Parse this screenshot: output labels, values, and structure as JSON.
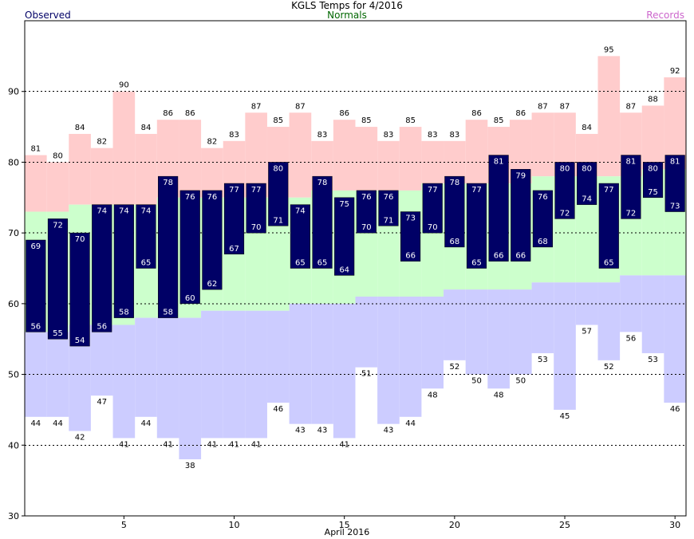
{
  "title": "KGLS Temps for 4/2016",
  "legend": {
    "observed": "Observed",
    "normals": "Normals",
    "records": "Records"
  },
  "colors": {
    "observed": "#000066",
    "normals": "#ccffcc",
    "record_high": "#ffcccc",
    "record_low": "#ccccff",
    "observed_legend": "#000066",
    "normals_legend": "#006600",
    "records_legend": "#cc66cc"
  },
  "chart_data": {
    "type": "bar",
    "title": "KGLS Temps for 4/2016",
    "xlabel": "April 2016",
    "ylabel": "",
    "xlim": [
      0.5,
      30.5
    ],
    "ylim": [
      30,
      100
    ],
    "x_ticks": [
      5,
      10,
      15,
      20,
      25,
      30
    ],
    "y_ticks": [
      30,
      40,
      50,
      60,
      70,
      80,
      90
    ],
    "grid": "horizontal dotted at 40, 50, 60, 70, 80, 90",
    "days": [
      1,
      2,
      3,
      4,
      5,
      6,
      7,
      8,
      9,
      10,
      11,
      12,
      13,
      14,
      15,
      16,
      17,
      18,
      19,
      20,
      21,
      22,
      23,
      24,
      25,
      26,
      27,
      28,
      29,
      30
    ],
    "series": [
      {
        "name": "Observed",
        "kind": "high",
        "values": [
          69,
          72,
          70,
          74,
          74,
          74,
          78,
          76,
          76,
          77,
          77,
          80,
          74,
          78,
          75,
          76,
          76,
          73,
          77,
          78,
          77,
          81,
          79,
          76,
          80,
          80,
          77,
          81,
          80,
          81
        ]
      },
      {
        "name": "Observed",
        "kind": "low",
        "values": [
          56,
          55,
          54,
          56,
          58,
          65,
          58,
          60,
          62,
          67,
          70,
          71,
          65,
          65,
          64,
          70,
          71,
          66,
          70,
          68,
          65,
          66,
          66,
          68,
          72,
          74,
          65,
          72,
          75,
          73
        ]
      },
      {
        "name": "Normals",
        "kind": "high",
        "values": [
          73,
          73,
          74,
          74,
          74,
          74,
          75,
          75,
          75,
          75,
          75,
          75,
          75,
          76,
          76,
          76,
          76,
          76,
          77,
          77,
          77,
          77,
          77,
          78,
          78,
          78,
          78,
          78,
          79,
          79
        ]
      },
      {
        "name": "Normals",
        "kind": "low",
        "values": [
          56,
          56,
          57,
          57,
          57,
          58,
          58,
          58,
          59,
          59,
          59,
          59,
          60,
          60,
          60,
          61,
          61,
          61,
          61,
          62,
          62,
          62,
          62,
          63,
          63,
          63,
          63,
          64,
          64,
          64
        ]
      },
      {
        "name": "Records",
        "kind": "high",
        "values": [
          81,
          80,
          84,
          82,
          90,
          84,
          86,
          86,
          82,
          83,
          87,
          85,
          87,
          83,
          86,
          85,
          83,
          85,
          83,
          83,
          86,
          85,
          86,
          87,
          87,
          84,
          95,
          87,
          88,
          92
        ]
      },
      {
        "name": "Records",
        "kind": "low",
        "values": [
          44,
          44,
          42,
          47,
          41,
          44,
          41,
          38,
          41,
          41,
          41,
          46,
          43,
          43,
          41,
          51,
          43,
          44,
          48,
          52,
          50,
          48,
          50,
          53,
          45,
          57,
          52,
          56,
          53,
          46
        ]
      }
    ]
  }
}
